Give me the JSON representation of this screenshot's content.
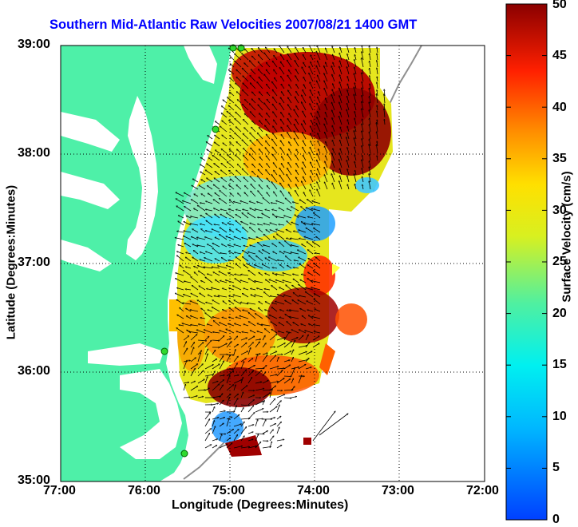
{
  "title": "Southern Mid-Atlantic Raw Velocities 2007/08/21 1400 GMT",
  "xlabel": "Longitude (Degrees:Minutes)",
  "ylabel": "Latitude (Degrees:Minutes)",
  "x_ticks": [
    "77:00",
    "76:00",
    "75:00",
    "74:00",
    "73:00",
    "72:00"
  ],
  "y_ticks": [
    "39:00",
    "38:00",
    "37:00",
    "36:00",
    "35:00"
  ],
  "colorbar": {
    "label": "Surface Velocity (cm/s)",
    "ticks": [
      "50",
      "45",
      "40",
      "35",
      "30",
      "25",
      "20",
      "15",
      "10",
      "5",
      "0"
    ],
    "range": [
      0,
      50
    ]
  },
  "colors": {
    "title": "#0000ff",
    "land": "#4ef0a8",
    "ocean": "#ffffff",
    "bathymetry": "#909090",
    "stations": "#2fd92f"
  },
  "legend": "colorbar-right",
  "grid": "dotted"
}
